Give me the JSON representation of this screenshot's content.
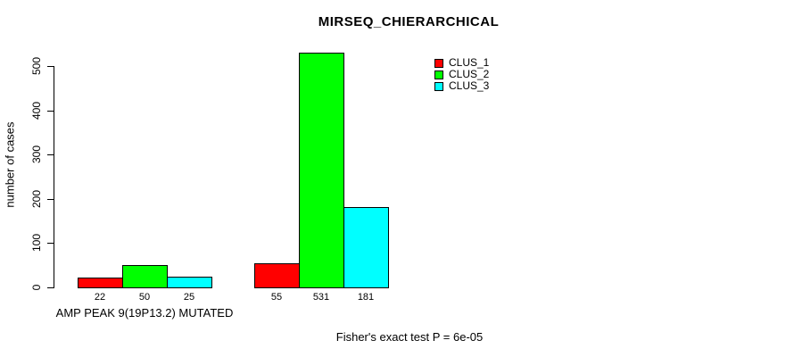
{
  "title": "MIRSEQ_CHIERARCHICAL",
  "footer": "Fisher's exact test P = 6e-05",
  "colors": {
    "series_red": "#FF0000",
    "series_green": "#00FF00",
    "series_cyan": "#00FFFF",
    "axis": "#000000",
    "background": "#FFFFFF"
  },
  "chart_data": {
    "type": "bar",
    "title": "MIRSEQ_CHIERARCHICAL",
    "xlabel": "",
    "ylabel": "number of cases",
    "ylim": [
      0,
      500
    ],
    "yticks": [
      0,
      100,
      200,
      300,
      400,
      500
    ],
    "grid": false,
    "categories": [
      "AMP PEAK 9(19P13.2) MUTATED",
      ""
    ],
    "series": [
      {
        "name": "CLUS_1",
        "color": "#FF0000",
        "values": [
          22,
          55
        ]
      },
      {
        "name": "CLUS_2",
        "color": "#00FF00",
        "values": [
          50,
          531
        ]
      },
      {
        "name": "CLUS_3",
        "color": "#00FFFF",
        "values": [
          25,
          181
        ]
      }
    ],
    "bar_value_labels": [
      [
        22,
        50,
        25
      ],
      [
        55,
        531,
        181
      ]
    ],
    "legend": {
      "position": "top-right",
      "entries": [
        "CLUS_1",
        "CLUS_2",
        "CLUS_3"
      ]
    },
    "annotation": "Fisher's exact test P = 6e-05"
  }
}
